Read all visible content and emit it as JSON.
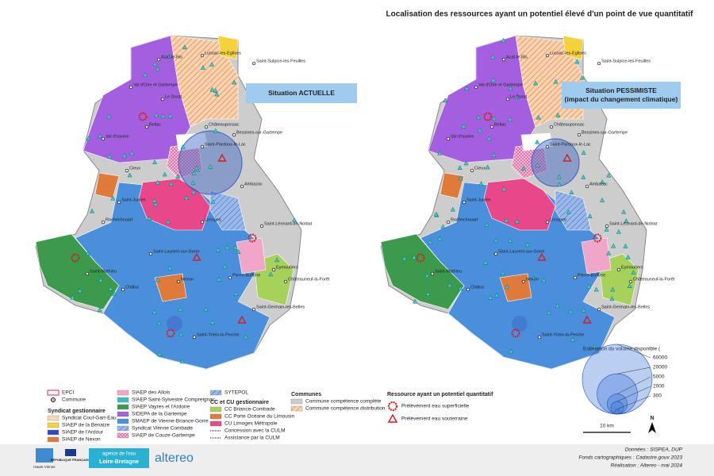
{
  "title": "Localisation des ressources ayant un potentiel élevé d'un point de vue quantitatif",
  "maps": [
    {
      "situation": [
        "Situation ACTUELLE"
      ]
    },
    {
      "situation": [
        "Situation PESSIMISTE",
        "(impact du changement climatique)"
      ]
    }
  ],
  "place_labels": [
    "Lussac-les-Eglises",
    "Saint-Sulpice-les-Feuilles",
    "Azat-le-Ris",
    "Val d'Oire et Gartempe",
    "Le Dorat",
    "Bellac",
    "Val d'Issoire",
    "Châteauponsac",
    "Bessines-sur-Gartempe",
    "Saint-Pardoux-le-Lac",
    "Cieux",
    "Saint-Junien",
    "Rochechouart",
    "Limoges",
    "Ambazac",
    "Saint-Léonard-de-Noblat",
    "Saint-Laurent-sur-Gorre",
    "Eymoutiers",
    "Saint-Mathieu",
    "Châlus",
    "Nexon",
    "Pierre-Buffière",
    "Châteauneuf-la-Forêt",
    "Saint-Germain-les-Belles",
    "Saint-Yrieix-la-Perche"
  ],
  "legend": [
    {
      "items": [
        "EPCI",
        "Commune"
      ]
    },
    {
      "heading": "Syndicat gestionnaire",
      "items": [
        "Syndicat Coul-Gart-Eau",
        "SIAEP de la Benaize",
        "SIAEP de l'Ardour",
        "SIAEP de Nexon"
      ]
    },
    {
      "items": [
        "SIAEP des Allois",
        "SIAEP Saint-Sylvestre Compreignac",
        "SIAEP Vayres et l'Ardoire",
        "SIDEPA de la Gartempe",
        "SMAEP de Vienne-Briance-Gorre",
        "Syndicat Vienne Combade",
        "SIAEP de Couze-Gartempe"
      ]
    },
    {
      "items": [
        "SYTEPOL"
      ]
    },
    {
      "heading": "CC et CU gestionnaire",
      "items": [
        "CC Briance-Combade",
        "CC Porte Océane du Limousin",
        "CU Limoges Métropole",
        "Concession avec la CULM",
        "Assistance par la CULM"
      ]
    },
    {
      "heading": "Communes",
      "items": [
        "Commune compétence complète",
        "Commune compétence distribution"
      ]
    },
    {
      "heading": "Ressource ayant un potentiel quantitatif",
      "items": [
        "Prélèvement eau superficielle",
        "Prélèvement eau souterraine"
      ]
    }
  ],
  "volume_legend": {
    "title": "Estimation du volume disponible (",
    "values": [
      60000,
      20000,
      5000,
      2000,
      300
    ]
  },
  "scale": "10 km",
  "north": "N",
  "footer": {
    "credits": [
      "Données : SISPEA, DUP",
      "Fonds cartographiques : Cadastre.gouv 2023",
      "Réalisation : Altereo - mai 2024"
    ],
    "logos": [
      "Haute-Vienne",
      "RÉPUBLIQUE FRANÇAISE",
      "agence de l'eau",
      "Loire-Bretagne",
      "altereo"
    ]
  }
}
